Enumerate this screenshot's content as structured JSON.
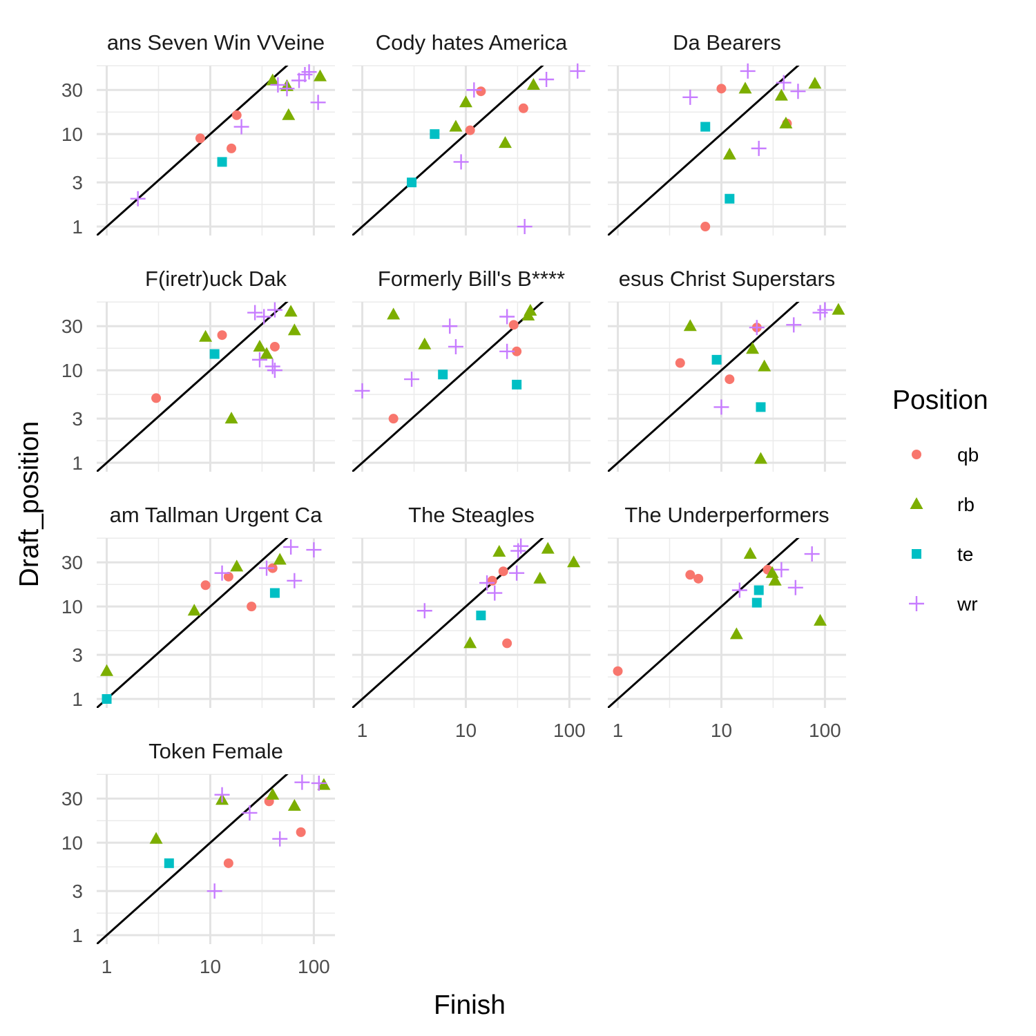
{
  "chart_data": {
    "type": "scatter",
    "xlabel": "Finish",
    "ylabel": "Draft_position",
    "x_scale": "log10",
    "y_scale": "log10",
    "xlim": [
      0.8,
      160
    ],
    "ylim": [
      0.8,
      55
    ],
    "x_ticks": [
      1,
      10,
      100
    ],
    "x_tick_labels": [
      "1",
      "10",
      "100"
    ],
    "y_ticks": [
      1,
      3,
      10,
      30
    ],
    "y_tick_labels": [
      "1",
      "3",
      "10",
      "30"
    ],
    "grid": true,
    "reference_line": "y = x",
    "legend": {
      "title": "Position",
      "placement": "right",
      "entries": [
        {
          "key": "qb",
          "label": "qb",
          "color": "#F8766D",
          "shape": "circle"
        },
        {
          "key": "rb",
          "label": "rb",
          "color": "#7CAE00",
          "shape": "triangle"
        },
        {
          "key": "te",
          "label": "te",
          "color": "#00BFC4",
          "shape": "square"
        },
        {
          "key": "wr",
          "label": "wr",
          "color": "#C77CFF",
          "shape": "plus"
        }
      ]
    },
    "panels": [
      {
        "title": "ans Seven Win VVeine",
        "points": [
          {
            "pos": "qb",
            "x": 8,
            "y": 9
          },
          {
            "pos": "qb",
            "x": 18,
            "y": 16
          },
          {
            "pos": "qb",
            "x": 16,
            "y": 7
          },
          {
            "pos": "te",
            "x": 13,
            "y": 5
          },
          {
            "pos": "rb",
            "x": 40,
            "y": 38
          },
          {
            "pos": "rb",
            "x": 55,
            "y": 33
          },
          {
            "pos": "rb",
            "x": 57,
            "y": 16
          },
          {
            "pos": "rb",
            "x": 115,
            "y": 42
          },
          {
            "pos": "wr",
            "x": 2,
            "y": 2
          },
          {
            "pos": "wr",
            "x": 20,
            "y": 12
          },
          {
            "pos": "wr",
            "x": 45,
            "y": 34
          },
          {
            "pos": "wr",
            "x": 55,
            "y": 31
          },
          {
            "pos": "wr",
            "x": 72,
            "y": 38
          },
          {
            "pos": "wr",
            "x": 82,
            "y": 44
          },
          {
            "pos": "wr",
            "x": 90,
            "y": 47
          },
          {
            "pos": "wr",
            "x": 110,
            "y": 22
          }
        ]
      },
      {
        "title": "Cody hates America",
        "points": [
          {
            "pos": "qb",
            "x": 14,
            "y": 29
          },
          {
            "pos": "qb",
            "x": 11,
            "y": 11
          },
          {
            "pos": "qb",
            "x": 36,
            "y": 19
          },
          {
            "pos": "te",
            "x": 3,
            "y": 3
          },
          {
            "pos": "te",
            "x": 5,
            "y": 10
          },
          {
            "pos": "rb",
            "x": 8,
            "y": 12
          },
          {
            "pos": "rb",
            "x": 10,
            "y": 22
          },
          {
            "pos": "rb",
            "x": 24,
            "y": 8
          },
          {
            "pos": "rb",
            "x": 45,
            "y": 34
          },
          {
            "pos": "wr",
            "x": 9,
            "y": 5
          },
          {
            "pos": "wr",
            "x": 12,
            "y": 30
          },
          {
            "pos": "wr",
            "x": 37,
            "y": 1
          },
          {
            "pos": "wr",
            "x": 60,
            "y": 39
          },
          {
            "pos": "wr",
            "x": 120,
            "y": 48
          }
        ]
      },
      {
        "title": "Da Bearers",
        "points": [
          {
            "pos": "qb",
            "x": 7,
            "y": 1
          },
          {
            "pos": "qb",
            "x": 10,
            "y": 31
          },
          {
            "pos": "qb",
            "x": 43,
            "y": 13
          },
          {
            "pos": "te",
            "x": 7,
            "y": 12
          },
          {
            "pos": "te",
            "x": 12,
            "y": 2
          },
          {
            "pos": "rb",
            "x": 12,
            "y": 6
          },
          {
            "pos": "rb",
            "x": 17,
            "y": 31
          },
          {
            "pos": "rb",
            "x": 38,
            "y": 26
          },
          {
            "pos": "rb",
            "x": 42,
            "y": 13
          },
          {
            "pos": "rb",
            "x": 80,
            "y": 35
          },
          {
            "pos": "wr",
            "x": 5,
            "y": 25
          },
          {
            "pos": "wr",
            "x": 18,
            "y": 48
          },
          {
            "pos": "wr",
            "x": 23,
            "y": 7
          },
          {
            "pos": "wr",
            "x": 40,
            "y": 36
          },
          {
            "pos": "wr",
            "x": 55,
            "y": 29
          }
        ]
      },
      {
        "title": "F(iretr)uck Dak",
        "points": [
          {
            "pos": "qb",
            "x": 3,
            "y": 5
          },
          {
            "pos": "qb",
            "x": 13,
            "y": 24
          },
          {
            "pos": "qb",
            "x": 42,
            "y": 18
          },
          {
            "pos": "te",
            "x": 11,
            "y": 15
          },
          {
            "pos": "rb",
            "x": 9,
            "y": 23
          },
          {
            "pos": "rb",
            "x": 16,
            "y": 3
          },
          {
            "pos": "rb",
            "x": 30,
            "y": 18
          },
          {
            "pos": "rb",
            "x": 35,
            "y": 15
          },
          {
            "pos": "rb",
            "x": 60,
            "y": 43
          },
          {
            "pos": "rb",
            "x": 65,
            "y": 27
          },
          {
            "pos": "wr",
            "x": 30,
            "y": 13
          },
          {
            "pos": "wr",
            "x": 40,
            "y": 11
          },
          {
            "pos": "wr",
            "x": 42,
            "y": 10
          },
          {
            "pos": "wr",
            "x": 27,
            "y": 42
          },
          {
            "pos": "wr",
            "x": 33,
            "y": 38
          },
          {
            "pos": "wr",
            "x": 42,
            "y": 45
          }
        ]
      },
      {
        "title": "Formerly Bill's B****",
        "points": [
          {
            "pos": "qb",
            "x": 2,
            "y": 3
          },
          {
            "pos": "qb",
            "x": 29,
            "y": 31
          },
          {
            "pos": "qb",
            "x": 31,
            "y": 16
          },
          {
            "pos": "te",
            "x": 6,
            "y": 9
          },
          {
            "pos": "te",
            "x": 31,
            "y": 7
          },
          {
            "pos": "rb",
            "x": 2,
            "y": 40
          },
          {
            "pos": "rb",
            "x": 4,
            "y": 19
          },
          {
            "pos": "rb",
            "x": 40,
            "y": 39
          },
          {
            "pos": "rb",
            "x": 42,
            "y": 44
          },
          {
            "pos": "wr",
            "x": 1,
            "y": 6
          },
          {
            "pos": "wr",
            "x": 3,
            "y": 8
          },
          {
            "pos": "wr",
            "x": 7,
            "y": 30
          },
          {
            "pos": "wr",
            "x": 8,
            "y": 18
          },
          {
            "pos": "wr",
            "x": 25,
            "y": 16
          },
          {
            "pos": "wr",
            "x": 25,
            "y": 38
          }
        ]
      },
      {
        "title": "esus Christ Superstars",
        "points": [
          {
            "pos": "qb",
            "x": 4,
            "y": 12
          },
          {
            "pos": "qb",
            "x": 12,
            "y": 8
          },
          {
            "pos": "qb",
            "x": 22,
            "y": 29
          },
          {
            "pos": "te",
            "x": 9,
            "y": 13
          },
          {
            "pos": "te",
            "x": 24,
            "y": 4
          },
          {
            "pos": "rb",
            "x": 5,
            "y": 30
          },
          {
            "pos": "rb",
            "x": 20,
            "y": 17
          },
          {
            "pos": "rb",
            "x": 24,
            "y": 1.1
          },
          {
            "pos": "rb",
            "x": 26,
            "y": 11
          },
          {
            "pos": "rb",
            "x": 135,
            "y": 45
          },
          {
            "pos": "wr",
            "x": 10,
            "y": 4
          },
          {
            "pos": "wr",
            "x": 22,
            "y": 29
          },
          {
            "pos": "wr",
            "x": 50,
            "y": 31
          },
          {
            "pos": "wr",
            "x": 90,
            "y": 42
          },
          {
            "pos": "wr",
            "x": 100,
            "y": 45
          }
        ]
      },
      {
        "title": "am Tallman Urgent Ca",
        "points": [
          {
            "pos": "qb",
            "x": 9,
            "y": 17
          },
          {
            "pos": "qb",
            "x": 15,
            "y": 21
          },
          {
            "pos": "qb",
            "x": 25,
            "y": 10
          },
          {
            "pos": "qb",
            "x": 40,
            "y": 26
          },
          {
            "pos": "te",
            "x": 1,
            "y": 1
          },
          {
            "pos": "te",
            "x": 42,
            "y": 14
          },
          {
            "pos": "rb",
            "x": 1,
            "y": 2
          },
          {
            "pos": "rb",
            "x": 7,
            "y": 9
          },
          {
            "pos": "rb",
            "x": 18,
            "y": 27
          },
          {
            "pos": "rb",
            "x": 47,
            "y": 32
          },
          {
            "pos": "wr",
            "x": 13,
            "y": 23
          },
          {
            "pos": "wr",
            "x": 35,
            "y": 26
          },
          {
            "pos": "wr",
            "x": 60,
            "y": 44
          },
          {
            "pos": "wr",
            "x": 65,
            "y": 19
          },
          {
            "pos": "wr",
            "x": 100,
            "y": 41
          }
        ]
      },
      {
        "title": "The Steagles",
        "points": [
          {
            "pos": "qb",
            "x": 18,
            "y": 19
          },
          {
            "pos": "qb",
            "x": 23,
            "y": 24
          },
          {
            "pos": "qb",
            "x": 25,
            "y": 4
          },
          {
            "pos": "te",
            "x": 14,
            "y": 8
          },
          {
            "pos": "rb",
            "x": 11,
            "y": 4
          },
          {
            "pos": "rb",
            "x": 21,
            "y": 39
          },
          {
            "pos": "rb",
            "x": 52,
            "y": 20
          },
          {
            "pos": "rb",
            "x": 62,
            "y": 42
          },
          {
            "pos": "rb",
            "x": 110,
            "y": 30
          },
          {
            "pos": "wr",
            "x": 4,
            "y": 9
          },
          {
            "pos": "wr",
            "x": 16,
            "y": 18
          },
          {
            "pos": "wr",
            "x": 19,
            "y": 14
          },
          {
            "pos": "wr",
            "x": 31,
            "y": 23
          },
          {
            "pos": "wr",
            "x": 32,
            "y": 40
          },
          {
            "pos": "wr",
            "x": 34,
            "y": 45
          }
        ]
      },
      {
        "title": "The Underperformers",
        "points": [
          {
            "pos": "qb",
            "x": 1,
            "y": 2
          },
          {
            "pos": "qb",
            "x": 5,
            "y": 22
          },
          {
            "pos": "qb",
            "x": 6,
            "y": 20
          },
          {
            "pos": "qb",
            "x": 28,
            "y": 25
          },
          {
            "pos": "te",
            "x": 22,
            "y": 11
          },
          {
            "pos": "te",
            "x": 23,
            "y": 15
          },
          {
            "pos": "rb",
            "x": 14,
            "y": 5
          },
          {
            "pos": "rb",
            "x": 19,
            "y": 37
          },
          {
            "pos": "rb",
            "x": 31,
            "y": 23
          },
          {
            "pos": "rb",
            "x": 33,
            "y": 19
          },
          {
            "pos": "rb",
            "x": 90,
            "y": 7
          },
          {
            "pos": "wr",
            "x": 15,
            "y": 15
          },
          {
            "pos": "wr",
            "x": 38,
            "y": 25
          },
          {
            "pos": "wr",
            "x": 52,
            "y": 16
          },
          {
            "pos": "wr",
            "x": 75,
            "y": 37
          }
        ]
      },
      {
        "title": "Token Female",
        "points": [
          {
            "pos": "qb",
            "x": 15,
            "y": 6
          },
          {
            "pos": "qb",
            "x": 37,
            "y": 28
          },
          {
            "pos": "qb",
            "x": 75,
            "y": 13
          },
          {
            "pos": "te",
            "x": 4,
            "y": 6
          },
          {
            "pos": "rb",
            "x": 3,
            "y": 11
          },
          {
            "pos": "rb",
            "x": 13,
            "y": 29
          },
          {
            "pos": "rb",
            "x": 40,
            "y": 33
          },
          {
            "pos": "rb",
            "x": 65,
            "y": 25
          },
          {
            "pos": "rb",
            "x": 125,
            "y": 42
          },
          {
            "pos": "wr",
            "x": 11,
            "y": 3
          },
          {
            "pos": "wr",
            "x": 13,
            "y": 33
          },
          {
            "pos": "wr",
            "x": 24,
            "y": 21
          },
          {
            "pos": "wr",
            "x": 47,
            "y": 11
          },
          {
            "pos": "wr",
            "x": 77,
            "y": 45
          },
          {
            "pos": "wr",
            "x": 112,
            "y": 44
          }
        ]
      }
    ]
  }
}
